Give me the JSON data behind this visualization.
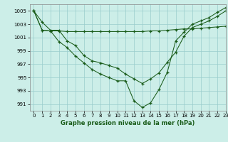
{
  "background_color": "#cceee8",
  "grid_color": "#99cccc",
  "line_color": "#1a5c1a",
  "marker": "+",
  "title": "Graphe pression niveau de la mer (hPa)",
  "xlim": [
    -0.5,
    23
  ],
  "ylim": [
    990,
    1006
  ],
  "yticks": [
    991,
    993,
    995,
    997,
    999,
    1001,
    1003,
    1005
  ],
  "xticks": [
    0,
    1,
    2,
    3,
    4,
    5,
    6,
    7,
    8,
    9,
    10,
    11,
    12,
    13,
    14,
    15,
    16,
    17,
    18,
    19,
    20,
    21,
    22,
    23
  ],
  "series": [
    [
      1005.0,
      1003.3,
      1002.1,
      1002.1,
      1000.5,
      999.8,
      998.3,
      997.5,
      997.2,
      996.8,
      996.4,
      995.5,
      994.8,
      994.1,
      994.8,
      995.7,
      997.3,
      998.8,
      1001.2,
      1002.5,
      1003.0,
      1003.5,
      1004.2,
      1005.0
    ],
    [
      1005.0,
      1002.1,
      1002.0,
      1002.0,
      1001.9,
      1001.9,
      1001.9,
      1001.9,
      1001.9,
      1001.9,
      1001.9,
      1001.9,
      1001.9,
      1001.9,
      1002.0,
      1002.0,
      1002.1,
      1002.2,
      1002.3,
      1002.3,
      1002.4,
      1002.5,
      1002.6,
      1002.7
    ],
    [
      1005.0,
      1002.1,
      1002.0,
      1000.4,
      999.5,
      998.2,
      997.2,
      996.2,
      995.5,
      995.0,
      994.5,
      994.5,
      991.5,
      990.5,
      991.2,
      993.2,
      995.8,
      1000.5,
      1001.8,
      1003.0,
      1003.5,
      1004.0,
      1004.8,
      1005.5
    ]
  ]
}
